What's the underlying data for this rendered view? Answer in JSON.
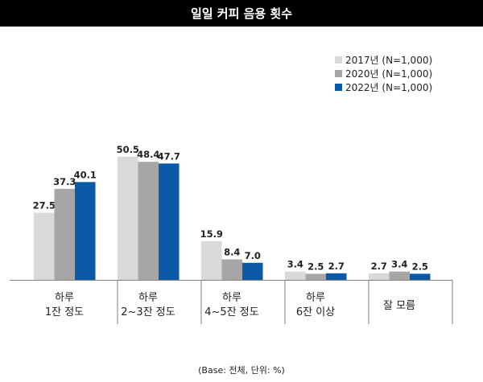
{
  "title": "일일 커피 음용 횟수",
  "note": "(Base: 전체, 단위: %)",
  "colors": {
    "title_bg": "#000000",
    "title_fg": "#ffffff",
    "axis": "#808080"
  },
  "chart_data": {
    "type": "bar",
    "categories": [
      [
        "하루",
        "1잔 정도"
      ],
      [
        "하루",
        "2~3잔 정도"
      ],
      [
        "하루",
        "4~5잔 정도"
      ],
      [
        "하루",
        "6잔 이상"
      ],
      [
        "잘 모름"
      ]
    ],
    "series": [
      {
        "name": "2017년 (N=1,000)",
        "color": "#d9d9d9",
        "values": [
          27.5,
          50.5,
          15.9,
          3.4,
          2.7
        ]
      },
      {
        "name": "2020년 (N=1,000)",
        "color": "#a6a6a6",
        "values": [
          37.3,
          48.4,
          8.4,
          2.5,
          3.4
        ]
      },
      {
        "name": "2022년 (N=1,000)",
        "color": "#0a5aa8",
        "values": [
          40.1,
          47.7,
          7.0,
          2.7,
          2.5
        ]
      }
    ],
    "value_labels": [
      [
        "27.5",
        "50.5",
        "15.9",
        "3.4",
        "2.7"
      ],
      [
        "37.3",
        "48.4",
        "8.4",
        "2.5",
        "3.4"
      ],
      [
        "40.1",
        "47.7",
        "7.0",
        "2.7",
        "2.5"
      ]
    ],
    "ylim": [
      0,
      60
    ],
    "grid": false,
    "legend_position": "top-right"
  }
}
